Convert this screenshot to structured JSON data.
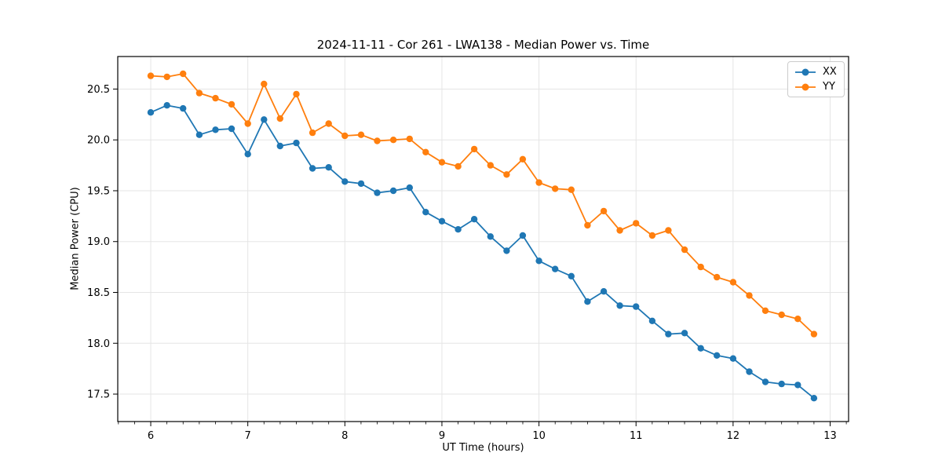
{
  "chart_data": {
    "type": "line",
    "title": "2024-11-11 - Cor 261 - LWA138 - Median Power vs. Time",
    "xlabel": "UT Time (hours)",
    "ylabel": "Median Power (CPU)",
    "xlim": [
      5.66,
      13.19
    ],
    "ylim": [
      17.23,
      20.82
    ],
    "x_ticks": [
      6,
      7,
      8,
      9,
      10,
      11,
      12,
      13
    ],
    "x_tick_labels": [
      "6",
      "7",
      "8",
      "9",
      "10",
      "11",
      "12",
      "13"
    ],
    "x_minor_divisions": 6,
    "y_ticks": [
      17.5,
      18.0,
      18.5,
      19.0,
      19.5,
      20.0,
      20.5
    ],
    "y_tick_labels": [
      "17.5",
      "18.0",
      "18.5",
      "19.0",
      "19.5",
      "20.0",
      "20.5"
    ],
    "grid": true,
    "grid_color": "#e5e5e5",
    "spine_color": "#000000",
    "background_color": "#ffffff",
    "legend_position": "upper right",
    "x": [
      6.0,
      6.167,
      6.333,
      6.5,
      6.667,
      6.833,
      7.0,
      7.167,
      7.333,
      7.5,
      7.667,
      7.833,
      8.0,
      8.167,
      8.333,
      8.5,
      8.667,
      8.833,
      9.0,
      9.167,
      9.333,
      9.5,
      9.667,
      9.833,
      10.0,
      10.167,
      10.333,
      10.5,
      10.667,
      10.833,
      11.0,
      11.167,
      11.333,
      11.5,
      11.667,
      11.833,
      12.0,
      12.167,
      12.333,
      12.5,
      12.667,
      12.833
    ],
    "series": [
      {
        "name": "XX",
        "color": "#1f77b4",
        "values": [
          20.27,
          20.34,
          20.31,
          20.05,
          20.1,
          20.11,
          19.86,
          20.2,
          19.94,
          19.97,
          19.72,
          19.73,
          19.59,
          19.57,
          19.48,
          19.5,
          19.53,
          19.29,
          19.2,
          19.12,
          19.22,
          19.05,
          18.91,
          19.06,
          18.81,
          18.73,
          18.66,
          18.41,
          18.51,
          18.37,
          18.36,
          18.22,
          18.09,
          18.1,
          17.95,
          17.88,
          17.85,
          17.72,
          17.62,
          17.6,
          17.59,
          17.46
        ]
      },
      {
        "name": "YY",
        "color": "#ff7f0e",
        "values": [
          20.63,
          20.62,
          20.65,
          20.46,
          20.41,
          20.35,
          20.16,
          20.55,
          20.21,
          20.45,
          20.07,
          20.16,
          20.04,
          20.05,
          19.99,
          20.0,
          20.01,
          19.88,
          19.78,
          19.74,
          19.91,
          19.75,
          19.66,
          19.81,
          19.58,
          19.52,
          19.51,
          19.16,
          19.3,
          19.11,
          19.18,
          19.06,
          19.11,
          18.92,
          18.75,
          18.65,
          18.6,
          18.47,
          18.32,
          18.28,
          18.24,
          18.09
        ]
      }
    ]
  }
}
